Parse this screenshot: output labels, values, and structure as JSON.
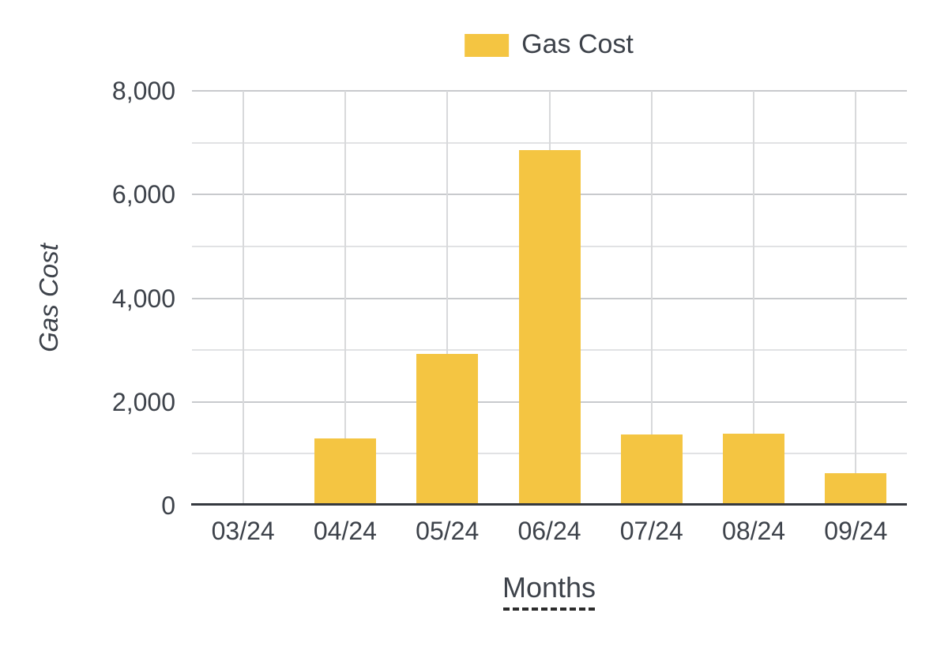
{
  "chart_data": {
    "type": "bar",
    "title": "",
    "series_name": "Gas Cost",
    "categories": [
      "03/24",
      "04/24",
      "05/24",
      "06/24",
      "07/24",
      "08/24",
      "09/24"
    ],
    "values": [
      0,
      1300,
      2930,
      6860,
      1370,
      1390,
      630
    ],
    "xlabel": "Months",
    "ylabel": "Gas Cost",
    "ylim": [
      0,
      8000
    ],
    "y_major_step": 2000,
    "y_minor_step": 1000,
    "y_tick_values": [
      0,
      2000,
      4000,
      6000,
      8000
    ],
    "y_tick_labels": [
      "0",
      "2,000",
      "4,000",
      "6,000",
      "8,000"
    ],
    "grid": true,
    "legend_position": "top-center",
    "bar_color": "#F4C542"
  },
  "colors": {
    "bar": "#F4C542",
    "text": "#3d424a",
    "axis_line": "#35393f",
    "grid_major": "#c8cacd",
    "grid_minor": "#e1e2e4",
    "grid_vertical": "#d8d9db"
  }
}
